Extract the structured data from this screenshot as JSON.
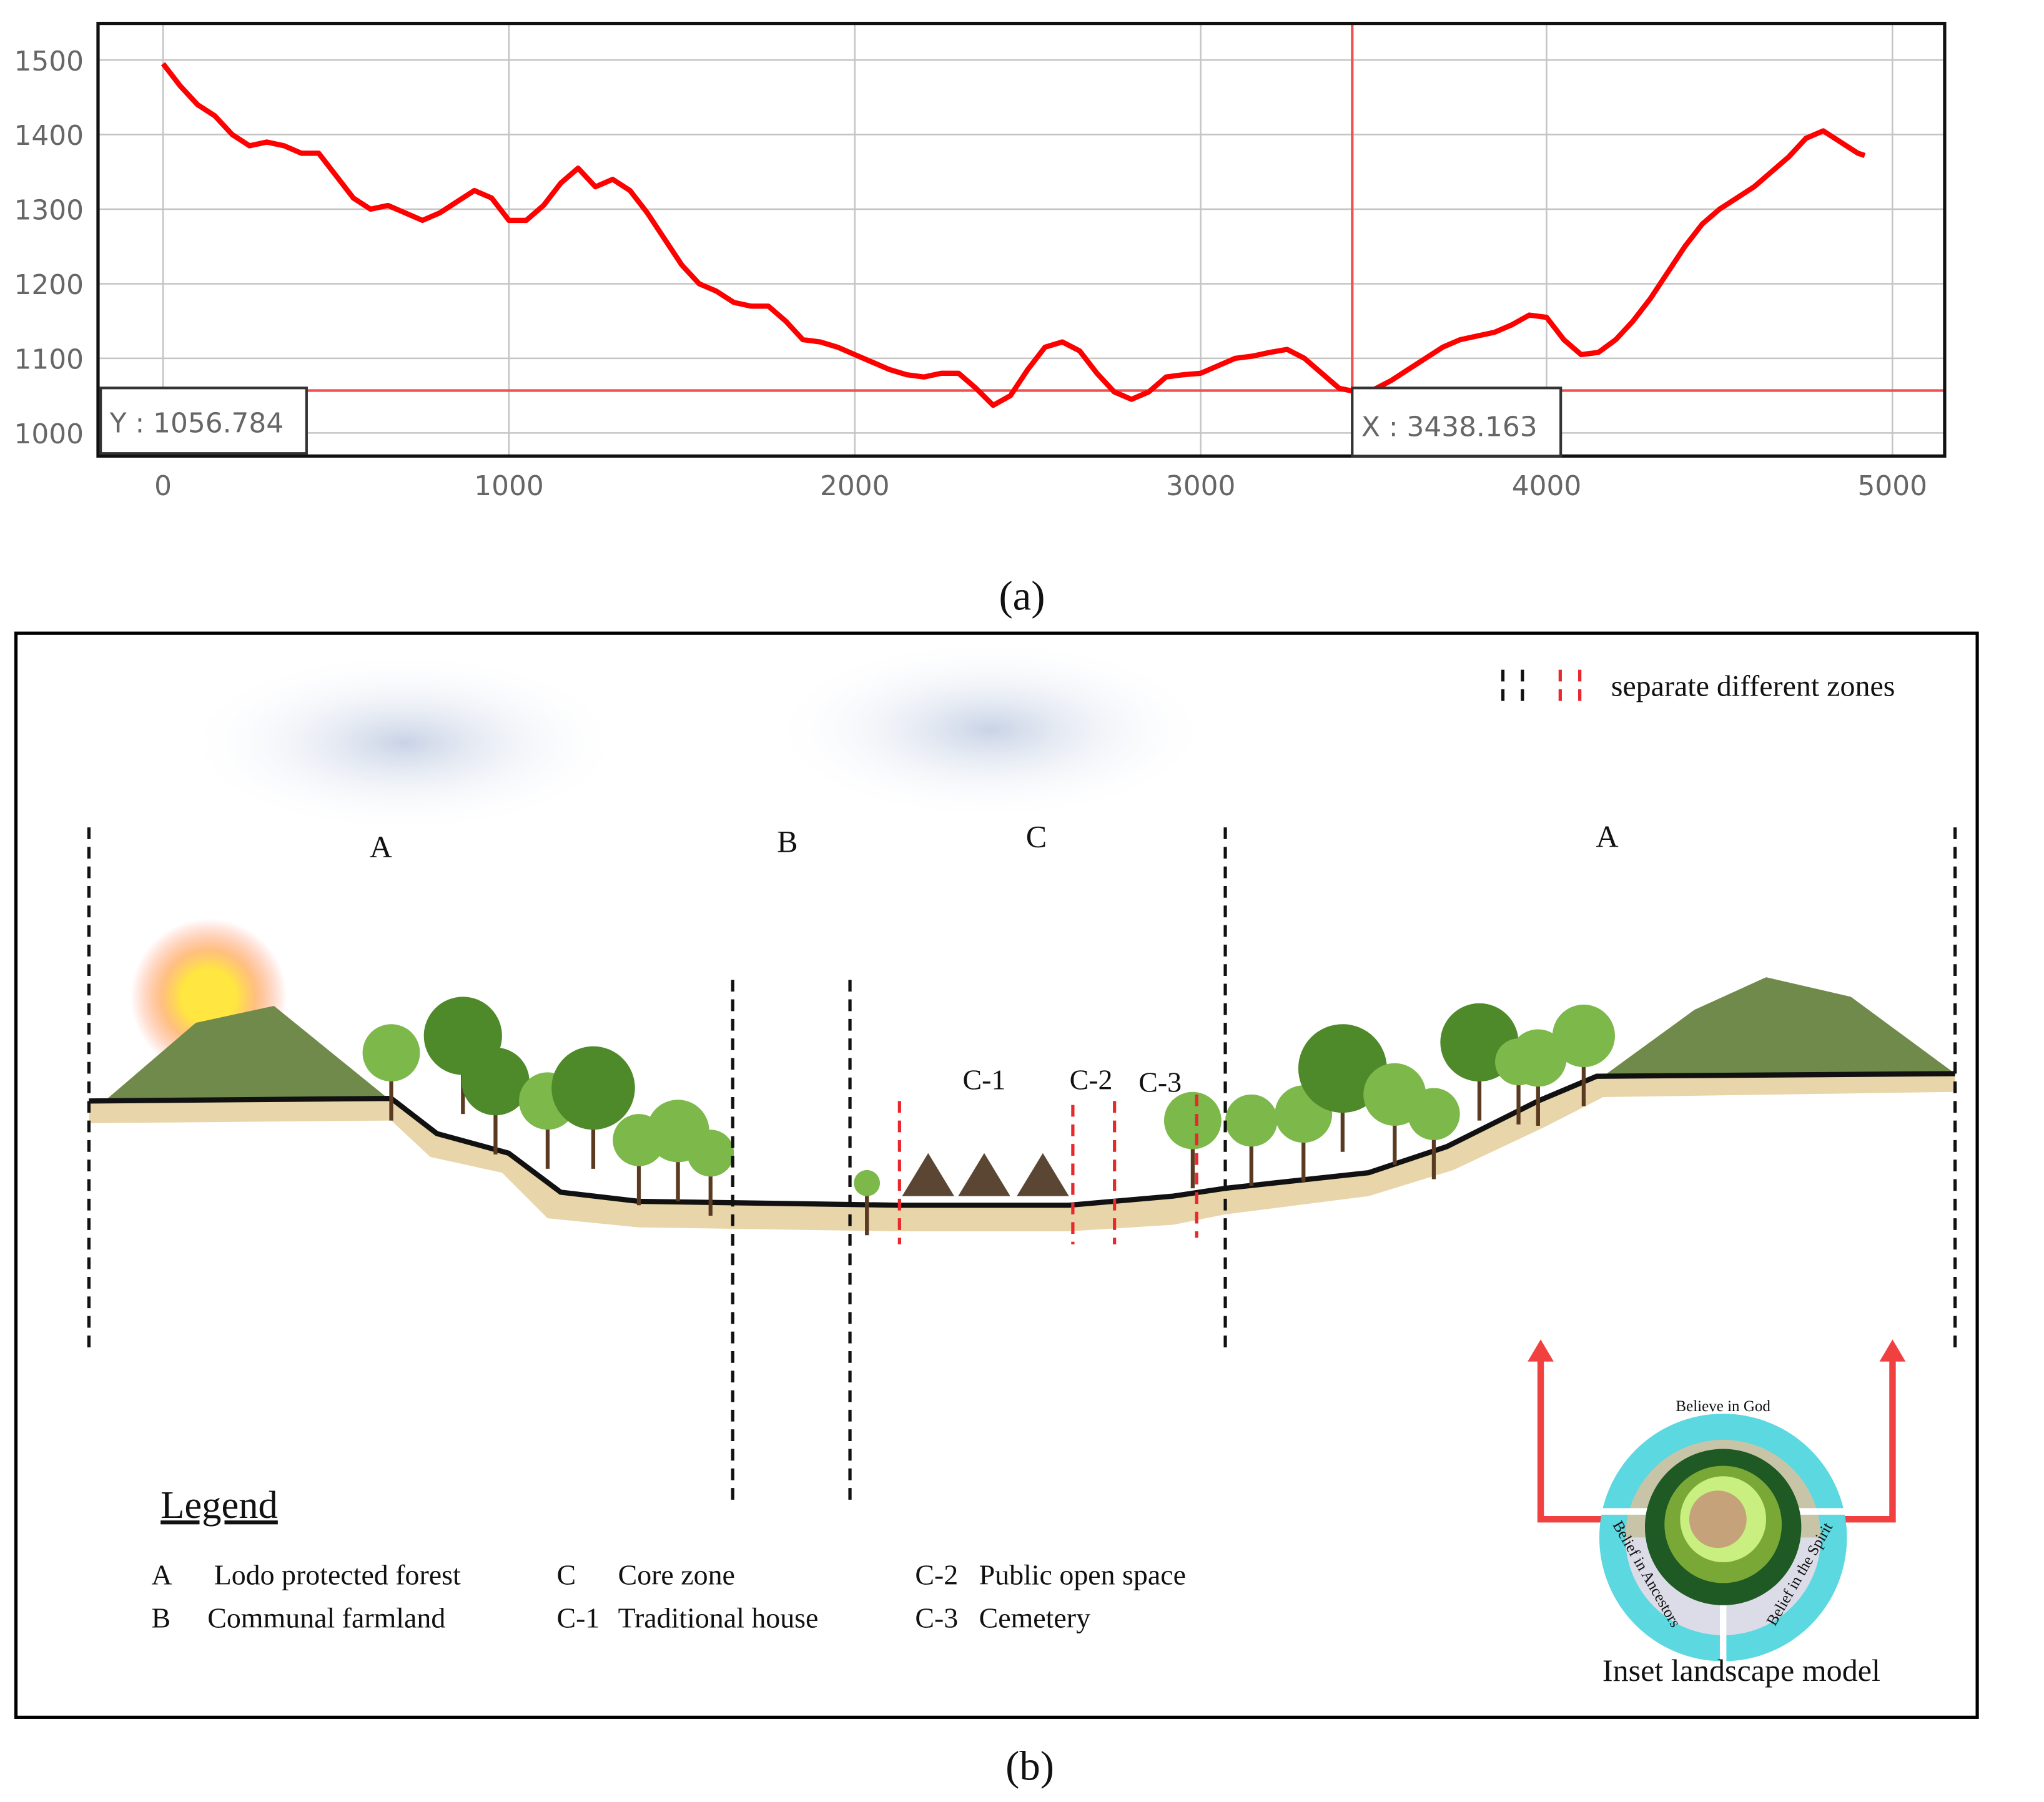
{
  "chart_data": {
    "type": "line",
    "x": [
      0,
      50,
      100,
      150,
      200,
      250,
      300,
      350,
      400,
      450,
      500,
      550,
      600,
      650,
      700,
      750,
      800,
      850,
      900,
      950,
      1000,
      1050,
      1100,
      1150,
      1200,
      1250,
      1300,
      1350,
      1400,
      1450,
      1500,
      1550,
      1600,
      1650,
      1700,
      1750,
      1800,
      1850,
      1900,
      1950,
      2000,
      2050,
      2100,
      2150,
      2200,
      2250,
      2300,
      2350,
      2400,
      2450,
      2500,
      2550,
      2600,
      2650,
      2700,
      2750,
      2800,
      2850,
      2900,
      2950,
      3000,
      3050,
      3100,
      3150,
      3200,
      3250,
      3300,
      3350,
      3400,
      3450,
      3500,
      3550,
      3600,
      3650,
      3700,
      3750,
      3800,
      3850,
      3900,
      3950,
      4000,
      4050,
      4100,
      4150,
      4200,
      4250,
      4300,
      4350,
      4400,
      4450,
      4500,
      4550,
      4600,
      4650,
      4700,
      4750,
      4800,
      4850,
      4900,
      4920
    ],
    "series": [
      {
        "color": "#ff0000",
        "values": [
          1495,
          1465,
          1440,
          1425,
          1400,
          1385,
          1390,
          1385,
          1375,
          1375,
          1345,
          1315,
          1300,
          1305,
          1295,
          1285,
          1295,
          1310,
          1325,
          1315,
          1285,
          1285,
          1305,
          1335,
          1355,
          1330,
          1340,
          1325,
          1295,
          1260,
          1225,
          1200,
          1190,
          1175,
          1170,
          1170,
          1150,
          1125,
          1122,
          1115,
          1105,
          1095,
          1085,
          1078,
          1075,
          1080,
          1080,
          1060,
          1037,
          1050,
          1085,
          1115,
          1122,
          1110,
          1080,
          1055,
          1045,
          1055,
          1075,
          1078,
          1080,
          1090,
          1100,
          1103,
          1108,
          1112,
          1100,
          1080,
          1060,
          1055,
          1058,
          1070,
          1085,
          1100,
          1115,
          1125,
          1130,
          1135,
          1145,
          1158,
          1155,
          1125,
          1105,
          1108,
          1125,
          1150,
          1180,
          1215,
          1250,
          1280,
          1300,
          1315,
          1330,
          1350,
          1370,
          1395,
          1405,
          1390,
          1375,
          1372
        ]
      }
    ],
    "xlim": [
      -188,
      5151
    ],
    "ylim": [
      969,
      1549
    ],
    "xticks": [
      0,
      1000,
      2000,
      3000,
      4000,
      5000
    ],
    "yticks": [
      1000,
      1100,
      1200,
      1300,
      1400,
      1500
    ],
    "grid": true,
    "crosshair": {
      "x": {
        "value": 3438.163,
        "label": "X : 3438.163"
      },
      "y": {
        "value": 1056.784,
        "label": "Y : 1056.784"
      }
    }
  },
  "captions": [
    "(a)",
    "(b)"
  ],
  "diagram": {
    "zones": [
      "A",
      "B",
      "C",
      "A"
    ],
    "subzones": [
      "C-1",
      "C-2",
      "C-3"
    ],
    "separator_note": "separate different zones",
    "legend": {
      "title": "Legend",
      "items": [
        [
          "A",
          "Lodo protected forest"
        ],
        [
          "B",
          "Communal farmland"
        ],
        [
          "C",
          "Core zone"
        ],
        [
          "C-1",
          "Traditional house"
        ],
        [
          "C-2",
          "Public open space"
        ],
        [
          "C-3",
          "Cemetery"
        ]
      ]
    },
    "inset": {
      "title": "Inset landscape model",
      "rings": [
        "Believe in God",
        "Belief in Ancestors",
        "Belief in the Spirit"
      ]
    }
  }
}
